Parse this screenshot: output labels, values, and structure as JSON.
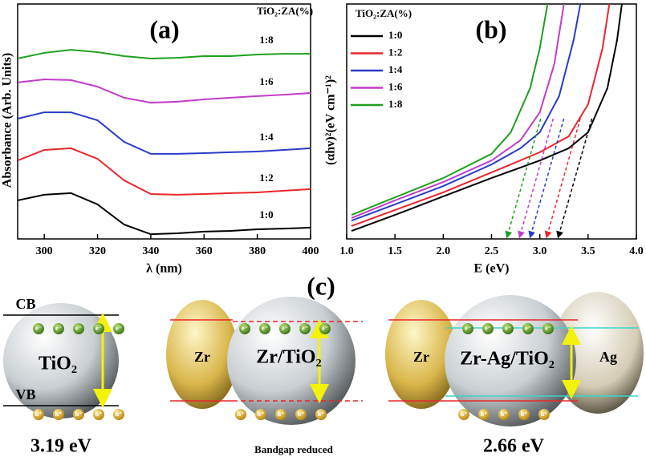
{
  "chart_data": [
    {
      "type": "line",
      "panel_label": "(a)",
      "xlabel": "λ (nm)",
      "ylabel": "Absorbance (Arb. Units)",
      "legend_title": "TiO₂:ZA(%)",
      "legend": "curve-end",
      "xlim": [
        290,
        400
      ],
      "xticks": [
        300,
        320,
        340,
        360,
        380,
        400
      ],
      "ylim": [
        0,
        10
      ],
      "x": [
        290,
        300,
        310,
        320,
        330,
        340,
        350,
        360,
        370,
        380,
        390,
        400
      ],
      "series": [
        {
          "name": "1:0",
          "color": "#000000",
          "values": [
            1.64,
            1.88,
            1.95,
            1.47,
            0.61,
            0.2,
            0.24,
            0.31,
            0.34,
            0.41,
            0.44,
            0.48
          ]
        },
        {
          "name": "1:2",
          "color": "#e8262c",
          "values": [
            3.34,
            3.79,
            3.86,
            3.41,
            2.49,
            1.91,
            1.88,
            1.91,
            1.95,
            1.98,
            2.05,
            2.12
          ]
        },
        {
          "name": "1:4",
          "color": "#2a3cc8",
          "values": [
            5.12,
            5.39,
            5.39,
            5.05,
            4.13,
            3.62,
            3.62,
            3.65,
            3.69,
            3.72,
            3.79,
            3.86
          ]
        },
        {
          "name": "1:6",
          "color": "#c23cc8",
          "values": [
            6.66,
            6.79,
            6.76,
            6.48,
            6.01,
            5.8,
            5.84,
            5.94,
            6.01,
            6.08,
            6.14,
            6.21
          ]
        },
        {
          "name": "1:8",
          "color": "#1ea01e",
          "values": [
            7.68,
            7.92,
            8.05,
            7.95,
            7.78,
            7.68,
            7.71,
            7.78,
            7.78,
            7.85,
            7.88,
            7.88
          ]
        }
      ]
    },
    {
      "type": "line",
      "panel_label": "(b)",
      "xlabel": "E (eV)",
      "ylabel": "(αhν)²(eV cm⁻¹)²",
      "legend_title": "TiO₂:ZA(%)",
      "legend": "upper left",
      "xlim": [
        1.0,
        4.0
      ],
      "xticks": [
        {
          "value": 1,
          "label": "1.0"
        },
        1.5,
        {
          "value": 2,
          "label": "2.0"
        },
        2.5,
        {
          "value": 3,
          "label": "3.0"
        },
        3.5,
        {
          "value": 4,
          "label": "4.0"
        }
      ],
      "ylim": [
        0,
        10
      ],
      "series": [
        {
          "name": "1:0",
          "color": "#000000",
          "intercept": 3.19,
          "x": [
            1.05,
            1.5,
            2.0,
            2.5,
            3.0,
            3.3,
            3.5,
            3.7,
            3.8,
            3.85
          ],
          "values": [
            0.34,
            1.02,
            1.81,
            2.59,
            3.34,
            3.86,
            4.54,
            6.42,
            8.46,
            10
          ]
        },
        {
          "name": "1:2",
          "color": "#e8262c",
          "intercept": 3.07,
          "x": [
            1.05,
            1.5,
            2.0,
            2.5,
            3.0,
            3.3,
            3.5,
            3.65,
            3.72
          ],
          "values": [
            0.55,
            1.23,
            1.98,
            2.83,
            3.69,
            4.37,
            5.73,
            8.12,
            10
          ]
        },
        {
          "name": "1:4",
          "color": "#2a3cc8",
          "intercept": 2.9,
          "x": [
            1.05,
            1.5,
            2.0,
            2.5,
            2.8,
            3.0,
            3.2,
            3.35,
            3.42
          ],
          "values": [
            0.78,
            1.47,
            2.25,
            3.17,
            3.86,
            4.54,
            6.08,
            8.46,
            10
          ]
        },
        {
          "name": "1:6",
          "color": "#c23cc8",
          "intercept": 2.79,
          "x": [
            1.05,
            1.5,
            2.0,
            2.5,
            2.8,
            3.0,
            3.15,
            3.25
          ],
          "values": [
            0.89,
            1.64,
            2.42,
            3.34,
            4.2,
            5.39,
            7.44,
            10
          ]
        },
        {
          "name": "1:8",
          "color": "#1ea01e",
          "intercept": 2.66,
          "x": [
            1.05,
            1.5,
            2.0,
            2.5,
            2.7,
            2.9,
            3.0,
            3.08
          ],
          "values": [
            1.02,
            1.77,
            2.59,
            3.62,
            4.54,
            6.42,
            8.12,
            10
          ]
        }
      ]
    }
  ],
  "diagram": {
    "label": "(c)",
    "electron": "e⁻",
    "hole": "h⁺",
    "panels": [
      {
        "center": "TiO₂",
        "cb": "CB",
        "vb": "VB",
        "caption": "3.19 eV"
      },
      {
        "left": "Zr",
        "center": "Zr/TiO₂",
        "caption": "Bandgap reduced"
      },
      {
        "left": "Zr",
        "center": "Zr-Ag/TiO₂",
        "right": "Ag",
        "caption": "2.66 eV"
      }
    ]
  }
}
